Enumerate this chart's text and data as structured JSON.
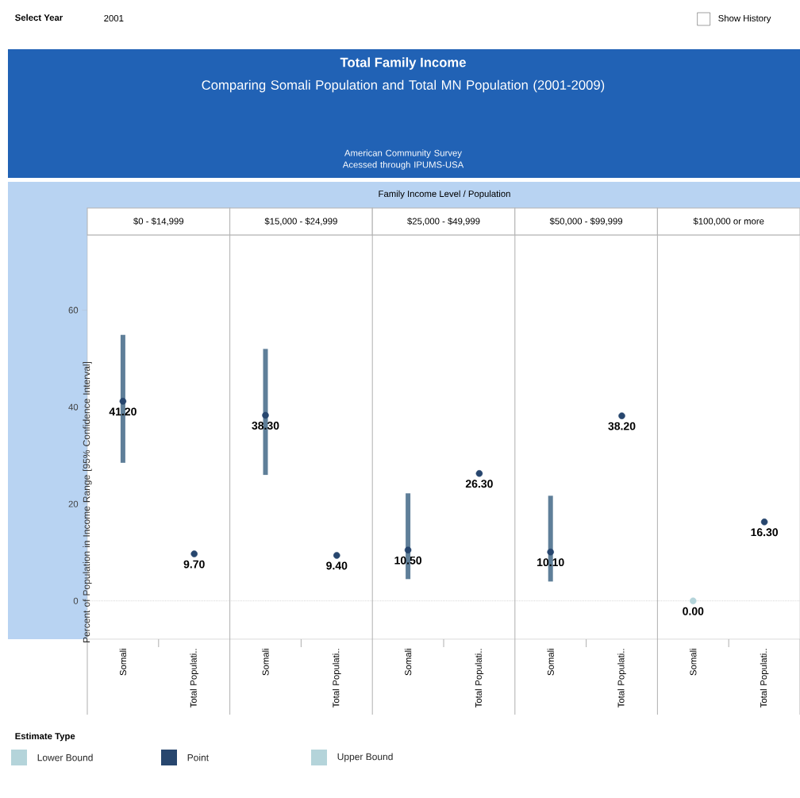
{
  "chart_data": {
    "type": "scatter",
    "title": "Total Family Income",
    "subtitle": "Comparing Somali Population and Total MN Population (2001-2009)",
    "ylabel": "Percent of Population in Income Range [95% Confidence Interval]",
    "xlabel": "Family Income Level  /  Population",
    "legend": "bottom",
    "legend_title": "Estimate Type",
    "annotations": [
      "Select Year",
      "2001",
      "Show History",
      "American Community Survey Acessed through IPUMS-USA",
      "$0 - $14,999",
      "$15,000 - $24,999",
      "$25,000 - $49,999",
      "$50,000 - $99,999",
      "$100,000 or more"
    ],
    "categories": [
      "Somali",
      "Total Populati..",
      "Somali",
      "Total Populati..",
      "Somali",
      "Total Populati..",
      "Somali",
      "Total Populati..",
      "Somali",
      "Total Populati.."
    ],
    "ylim": [
      -7.9,
      75.5
    ],
    "yticks": [
      0,
      20,
      40,
      60
    ],
    "ref_lines": [
      {
        "axis": "y",
        "value": 0,
        "color": "#a0a0a0",
        "line_style": "dotted"
      }
    ],
    "series": [
      {
        "name": "Lower Bound",
        "color": "#b4d4da",
        "values": [
          null,
          null,
          null,
          null,
          null,
          null,
          null,
          null,
          null,
          null
        ]
      },
      {
        "name": "Point",
        "color": "#27466e",
        "colors": [
          "#27466e",
          "#27466e",
          "#27466e",
          "#27466e",
          "#27466e",
          "#27466e",
          "#27466e",
          "#27466e",
          "#b4d4da",
          "#27466e"
        ],
        "marker": "circle",
        "values": [
          41.2,
          9.7,
          38.3,
          9.4,
          10.5,
          26.3,
          10.1,
          38.2,
          0,
          16.3
        ],
        "errors": [
          [
            28.5,
            54.9
          ],
          null,
          [
            26.0,
            52.0
          ],
          null,
          [
            4.5,
            22.2
          ],
          null,
          [
            4.0,
            21.7
          ],
          null,
          null,
          null
        ],
        "value_labels": [
          "41.20",
          "9.70",
          "38.30",
          "9.40",
          "10.50",
          "26.30",
          "10.10",
          "38.20",
          "0.00",
          "16.30"
        ]
      },
      {
        "name": "Upper Bound",
        "color": "#b4d4da",
        "values": [
          null,
          null,
          null,
          null,
          null,
          null,
          null,
          null,
          null,
          null
        ]
      }
    ]
  }
}
